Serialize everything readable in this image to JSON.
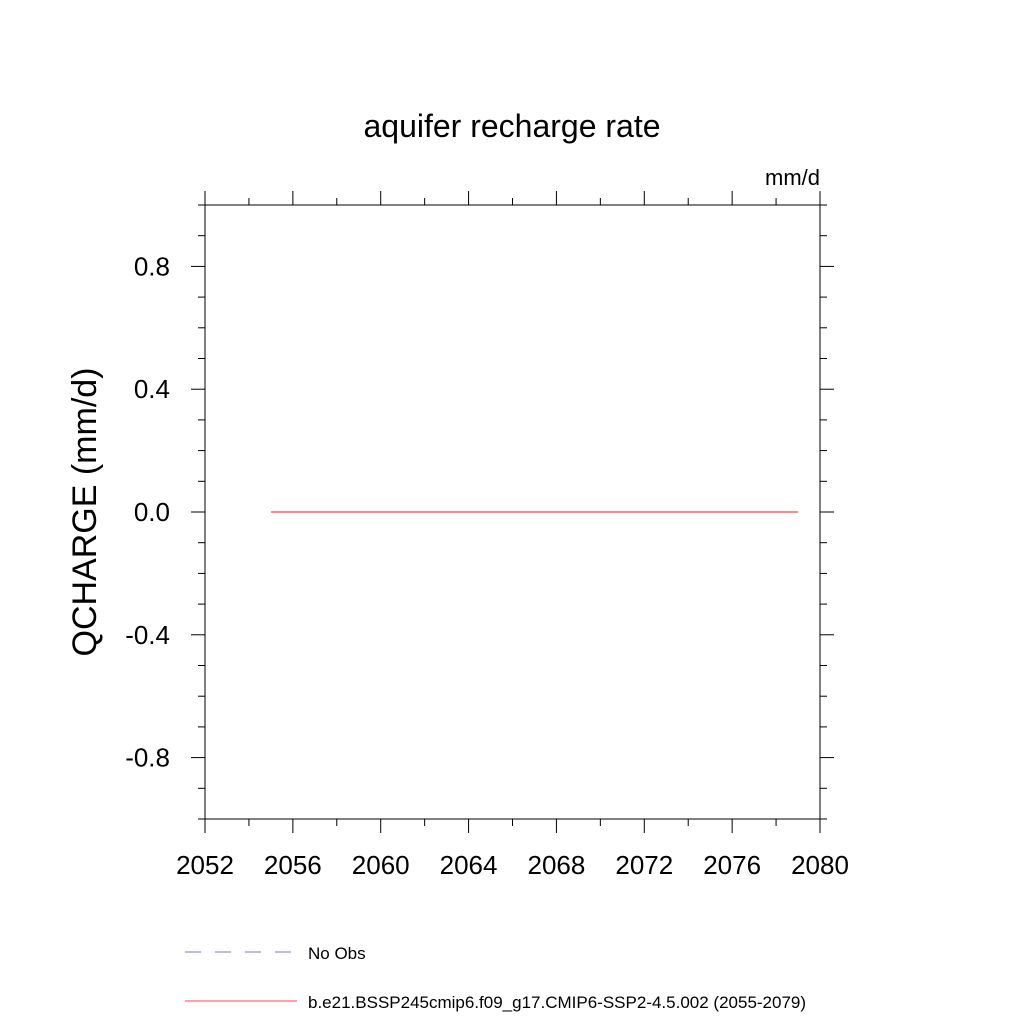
{
  "chart_data": {
    "type": "line",
    "title": "aquifer recharge rate",
    "units_label": "mm/d",
    "ylabel": "QCHARGE  (mm/d)",
    "xlabel": "",
    "xlim": [
      2052,
      2080
    ],
    "ylim": [
      -1.0,
      1.0
    ],
    "x_ticks": [
      2052,
      2056,
      2060,
      2064,
      2068,
      2072,
      2076,
      2080
    ],
    "x_tick_labels": [
      "2052",
      "2056",
      "2060",
      "2064",
      "2068",
      "2072",
      "2076",
      "2080"
    ],
    "y_ticks": [
      -0.8,
      -0.4,
      0.0,
      0.4,
      0.8
    ],
    "y_tick_labels": [
      "-0.8",
      "-0.4",
      "0.0",
      "0.4",
      "0.8"
    ],
    "grid": false,
    "legend_position": "bottom",
    "series": [
      {
        "name": "No Obs",
        "color": "#7777cc",
        "dash": "dashed",
        "x": [],
        "y": []
      },
      {
        "name": "b.e21.BSSP245cmip6.f09_g17.CMIP6-SSP2-4.5.002 (2055-2079)",
        "color": "#ff4444",
        "dash": "solid",
        "x": [
          2055,
          2079
        ],
        "y": [
          0.0,
          0.0
        ]
      }
    ]
  }
}
